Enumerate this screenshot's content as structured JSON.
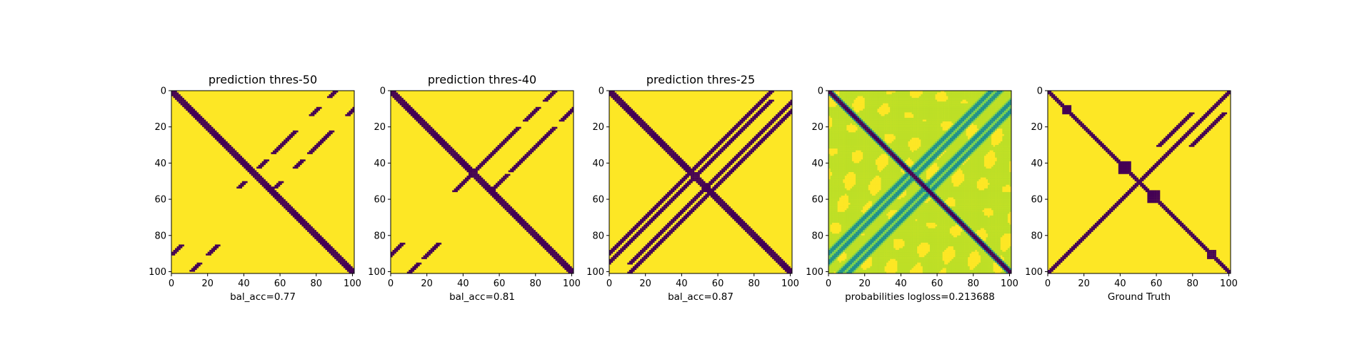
{
  "colors": {
    "dark": "#440154",
    "mid": "#21918c",
    "light": "#bddf26",
    "bright": "#fde725",
    "axis": "#000000"
  },
  "chart_data": [
    {
      "type": "heatmap",
      "title": "prediction thres-50",
      "xlabel": "bal_acc=0.77",
      "ylabel": "",
      "xlim": [
        0,
        101
      ],
      "ylim": [
        101,
        0
      ],
      "xticks": [
        0,
        20,
        40,
        60,
        80,
        100
      ],
      "yticks": [
        0,
        20,
        40,
        60,
        80,
        100
      ],
      "mode": "binary",
      "structure": {
        "main_diagonal_halfwidth": 2,
        "anti_diagonal": false,
        "side_bands": [
          {
            "offset": -10,
            "segments": [
              [
                0,
                3
              ],
              [
                9,
                13
              ],
              [
                22,
                34
              ],
              [
                38,
                42
              ],
              [
                50,
                53
              ],
              [
                85,
                90
              ],
              [
                95,
                99
              ]
            ]
          },
          {
            "offset": 10,
            "segments": [
              [
                0,
                3
              ],
              [
                9,
                13
              ],
              [
                22,
                34
              ],
              [
                38,
                42
              ],
              [
                50,
                53
              ],
              [
                85,
                90
              ],
              [
                95,
                99
              ]
            ]
          }
        ]
      }
    },
    {
      "type": "heatmap",
      "title": "prediction thres-40",
      "xlabel": "bal_acc=0.81",
      "ylabel": "",
      "xlim": [
        0,
        101
      ],
      "ylim": [
        101,
        0
      ],
      "xticks": [
        0,
        20,
        40,
        60,
        80,
        100
      ],
      "yticks": [
        0,
        20,
        40,
        60,
        80,
        100
      ],
      "mode": "binary",
      "structure": {
        "main_diagonal_halfwidth": 2,
        "anti_diagonal": false,
        "side_bands": [
          {
            "offset": -10,
            "segments": [
              [
                0,
                5
              ],
              [
                9,
                16
              ],
              [
                20,
                44
              ],
              [
                46,
                55
              ],
              [
                84,
                92
              ],
              [
                95,
                100
              ]
            ]
          },
          {
            "offset": 10,
            "segments": [
              [
                0,
                5
              ],
              [
                9,
                16
              ],
              [
                20,
                44
              ],
              [
                46,
                55
              ],
              [
                84,
                92
              ],
              [
                95,
                100
              ]
            ]
          }
        ]
      }
    },
    {
      "type": "heatmap",
      "title": "prediction thres-25",
      "xlabel": "bal_acc=0.87",
      "ylabel": "",
      "xlim": [
        0,
        101
      ],
      "ylim": [
        101,
        0
      ],
      "xticks": [
        0,
        20,
        40,
        60,
        80,
        100
      ],
      "yticks": [
        0,
        20,
        40,
        60,
        80,
        100
      ],
      "mode": "binary",
      "structure": {
        "main_diagonal_halfwidth": 2,
        "anti_diagonal": false,
        "side_bands": [
          {
            "offset": -11,
            "segments": [
              [
                0,
                101
              ]
            ]
          },
          {
            "offset": -6,
            "segments": [
              [
                5,
                95
              ]
            ]
          },
          {
            "offset": 6,
            "segments": [
              [
                5,
                95
              ]
            ]
          },
          {
            "offset": 11,
            "segments": [
              [
                0,
                101
              ]
            ]
          }
        ]
      }
    },
    {
      "type": "heatmap",
      "title": "",
      "xlabel": "probabilities logloss=0.213688",
      "ylabel": "",
      "xlim": [
        0,
        101
      ],
      "ylim": [
        101,
        0
      ],
      "xticks": [
        0,
        20,
        40,
        60,
        80,
        100
      ],
      "yticks": [
        0,
        20,
        40,
        60,
        80,
        100
      ],
      "mode": "continuous",
      "structure": {
        "main_diagonal_halfwidth": 2,
        "anti_diagonal": false,
        "side_bands": [
          {
            "offset": -11,
            "segments": [
              [
                0,
                101
              ]
            ]
          },
          {
            "offset": -6,
            "segments": [
              [
                0,
                101
              ]
            ]
          },
          {
            "offset": 6,
            "segments": [
              [
                0,
                101
              ]
            ]
          },
          {
            "offset": 11,
            "segments": [
              [
                0,
                101
              ]
            ]
          }
        ]
      }
    },
    {
      "type": "heatmap",
      "title": "",
      "xlabel": "Ground Truth",
      "ylabel": "",
      "xlim": [
        0,
        101
      ],
      "ylim": [
        101,
        0
      ],
      "xticks": [
        0,
        20,
        40,
        60,
        80,
        100
      ],
      "yticks": [
        0,
        20,
        40,
        60,
        80,
        100
      ],
      "mode": "binary",
      "structure": {
        "main_diagonal_halfwidth": 1,
        "anti_diagonal": true,
        "side_bands": [
          {
            "offset": -9,
            "segments": [
              [
                12,
                30
              ]
            ]
          },
          {
            "offset": 9,
            "segments": [
              [
                12,
                30
              ]
            ]
          }
        ],
        "blobs": [
          [
            42,
            42,
            3
          ],
          [
            58,
            58,
            3
          ],
          [
            10,
            10,
            2
          ],
          [
            90,
            90,
            2
          ]
        ]
      }
    }
  ]
}
